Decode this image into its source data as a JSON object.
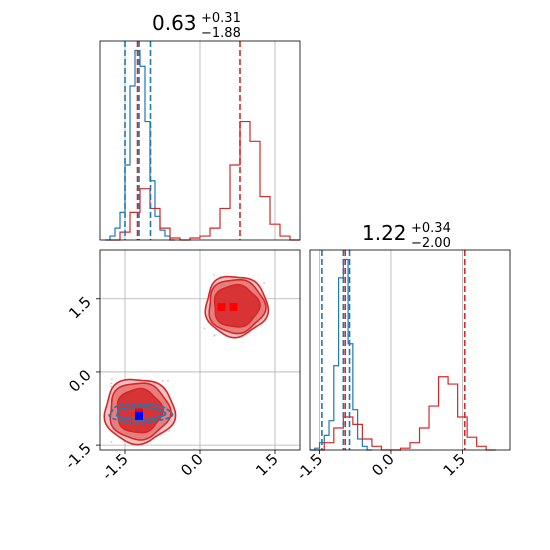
{
  "chart_data": {
    "type": "corner",
    "colors": {
      "blue": "#1f77b4",
      "red": "#d62728",
      "grid": "#b0b0b0"
    },
    "grid": true,
    "panels": [
      {
        "id": "hist-param-1",
        "kind": "histogram",
        "title": {
          "main": "0.63",
          "plus": "+0.31",
          "minus": "−1.88"
        },
        "xlim": [
          -2.0,
          2.0
        ],
        "xticks": [
          "-1.5",
          "0.0",
          "1.5"
        ],
        "series": [
          {
            "color": "blue",
            "quantiles": [
              -1.5,
              -1.22,
              -0.99
            ],
            "bin_edges": [
              -1.9,
              -1.8,
              -1.7,
              -1.6,
              -1.5,
              -1.4,
              -1.3,
              -1.2,
              -1.1,
              -1.0,
              -0.9,
              -0.8,
              -0.7,
              -0.6,
              -0.5
            ],
            "counts": [
              0,
              2,
              6,
              14,
              38,
              78,
              96,
              88,
              60,
              30,
              12,
              5,
              2,
              0
            ]
          },
          {
            "color": "red",
            "quantiles": [
              -1.25,
              0.8
            ],
            "bin_edges": [
              -1.8,
              -1.6,
              -1.4,
              -1.2,
              -1.0,
              -0.8,
              -0.6,
              -0.4,
              -0.2,
              0.0,
              0.2,
              0.4,
              0.6,
              0.8,
              1.0,
              1.2,
              1.4,
              1.6,
              1.8,
              2.0
            ],
            "counts": [
              0,
              4,
              14,
              26,
              16,
              6,
              1,
              0,
              1,
              2,
              6,
              16,
              38,
              60,
              50,
              22,
              8,
              2,
              0
            ]
          }
        ]
      },
      {
        "id": "scatter-2d",
        "kind": "contour",
        "xlim": [
          -2.0,
          2.0
        ],
        "ylim": [
          -1.6,
          2.5
        ],
        "xticks": [
          "-1.5",
          "0.0",
          "1.5"
        ],
        "yticks": [
          "-1.5",
          "0.0",
          "1.5"
        ],
        "blobs": [
          {
            "color": "red",
            "center": [
              0.72,
              1.35
            ],
            "radii": [
              [
                0.62,
                0.62
              ],
              [
                0.56,
                0.55
              ],
              [
                0.45,
                0.43
              ]
            ]
          },
          {
            "color": "red",
            "center": [
              -1.22,
              -0.8
            ],
            "radii": [
              [
                0.7,
                0.66
              ],
              [
                0.6,
                0.58
              ],
              [
                0.45,
                0.45
              ]
            ]
          },
          {
            "color": "blue",
            "center": [
              -1.2,
              -0.85
            ],
            "radii": [
              [
                0.62,
                0.2
              ],
              [
                0.48,
                0.13
              ]
            ]
          }
        ],
        "points": [
          {
            "color": "red",
            "x": 0.43,
            "y": 1.33
          },
          {
            "color": "red",
            "x": 0.67,
            "y": 1.33
          },
          {
            "color": "red",
            "x": -1.22,
            "y": -0.83
          },
          {
            "color": "blue",
            "x": -1.22,
            "y": -0.9
          }
        ]
      },
      {
        "id": "hist-param-2",
        "kind": "histogram",
        "title": {
          "main": "1.22",
          "plus": "+0.34",
          "minus": "−2.00"
        },
        "xlim": [
          -1.7,
          2.5
        ],
        "xticks": [
          "-1.5",
          "0.0",
          "1.5"
        ],
        "series": [
          {
            "color": "blue",
            "quantiles": [
              -1.45,
              -1.0,
              -0.87
            ],
            "bin_edges": [
              -1.7,
              -1.6,
              -1.5,
              -1.4,
              -1.3,
              -1.2,
              -1.1,
              -1.0,
              -0.9,
              -0.8,
              -0.7,
              -0.6,
              -0.5,
              -0.4
            ],
            "counts": [
              0,
              1,
              4,
              8,
              16,
              46,
              94,
              104,
              58,
              22,
              6,
              2,
              0
            ]
          },
          {
            "color": "red",
            "quantiles": [
              -0.96,
              1.55
            ],
            "bin_edges": [
              -1.6,
              -1.4,
              -1.2,
              -1.0,
              -0.8,
              -0.6,
              -0.4,
              -0.2,
              0.0,
              0.2,
              0.4,
              0.6,
              0.8,
              1.0,
              1.2,
              1.4,
              1.6,
              1.8,
              2.0,
              2.2
            ],
            "counts": [
              0,
              4,
              12,
              18,
              14,
              6,
              2,
              0,
              0,
              1,
              4,
              12,
              24,
              40,
              36,
              18,
              7,
              2,
              0
            ]
          }
        ]
      }
    ]
  }
}
